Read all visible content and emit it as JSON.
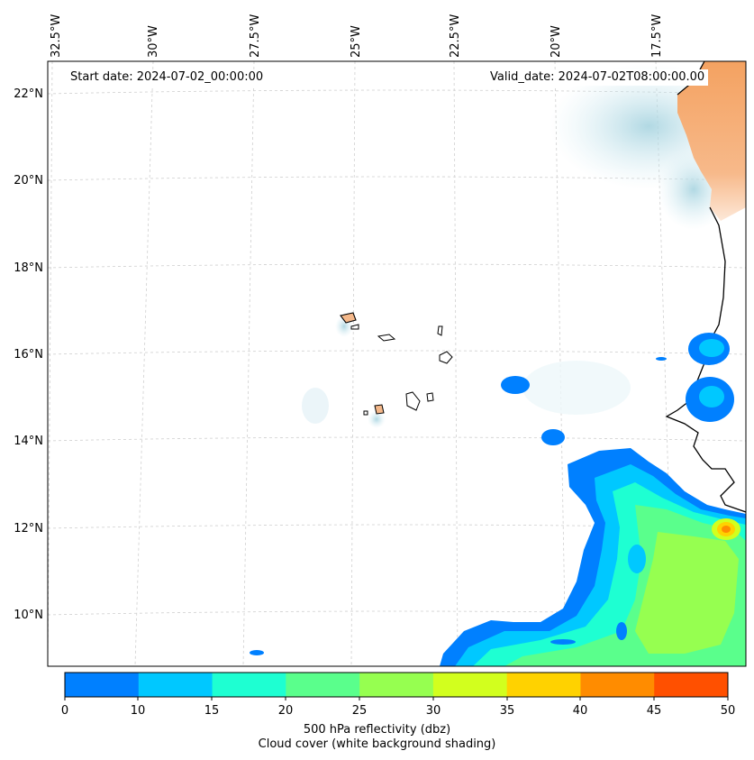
{
  "map": {
    "start_date": "Start date: 2024-07-02_00:00:00",
    "valid_date": "Valid_date: 2024-07-02T08:00:00.00",
    "lon_labels": [
      "32.5°W",
      "30°W",
      "27.5°W",
      "25°W",
      "22.5°W",
      "20°W",
      "17.5°W"
    ],
    "lat_labels": [
      "22°N",
      "20°N",
      "18°N",
      "16°N",
      "14°N",
      "12°N",
      "10°N"
    ]
  },
  "colorbar": {
    "ticks": [
      "0",
      "10",
      "15",
      "20",
      "25",
      "30",
      "35",
      "40",
      "45",
      "50"
    ],
    "colors": [
      "#0080ff",
      "#00c8ff",
      "#1effd2",
      "#5aff8c",
      "#96ff50",
      "#d2ff1e",
      "#ffd200",
      "#ff8c00",
      "#ff5000"
    ],
    "title_line1": "500 hPa reflectivity (dbz)",
    "title_line2": "Cloud cover (white background shading)"
  },
  "colors": {
    "land": "#f4a261",
    "cloud": "#b9dde6",
    "coast": "#000000"
  }
}
